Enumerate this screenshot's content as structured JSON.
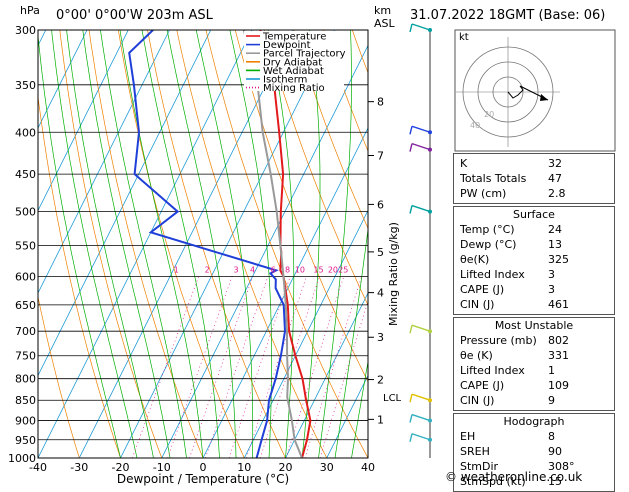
{
  "header": {
    "location": "0°00' 0°00'W 203m ASL",
    "datetime": "31.07.2022 18GMT (Base: 06)",
    "hpa_label": "hPa",
    "km_label": "km",
    "asl_label": "ASL",
    "footer": "© weatheronline.co.uk",
    "mixing_axis_label": "Mixing Ratio (g/kg)",
    "lcl_label": "LCL"
  },
  "chart_data": {
    "type": "line",
    "title": "",
    "xlabel": "Dewpoint / Temperature (°C)",
    "ylabel": "hPa",
    "xlim": [
      -40,
      40
    ],
    "ylim": [
      1000,
      300
    ],
    "x_ticks": [
      "-40",
      "-30",
      "-20",
      "-10",
      "0",
      "10",
      "20",
      "30",
      "40"
    ],
    "pressure_levels": [
      300,
      350,
      400,
      450,
      500,
      550,
      600,
      650,
      700,
      750,
      800,
      850,
      900,
      950,
      1000
    ],
    "km_ticks": [
      {
        "label": "8",
        "p": 367
      },
      {
        "label": "7",
        "p": 427
      },
      {
        "label": "6",
        "p": 490
      },
      {
        "label": "5",
        "p": 560
      },
      {
        "label": "4",
        "p": 628
      },
      {
        "label": "3",
        "p": 712
      },
      {
        "label": "2",
        "p": 802
      },
      {
        "label": "1",
        "p": 897
      }
    ],
    "lcl_p": 842,
    "mixing_ratio_labels": [
      {
        "label": "1",
        "x": -6.5
      },
      {
        "label": "2",
        "x": 1
      },
      {
        "label": "3",
        "x": 8
      },
      {
        "label": "4",
        "x": 12
      },
      {
        "label": "6",
        "x": 17
      },
      {
        "label": "8",
        "x": 20.5
      },
      {
        "label": "10",
        "x": 23.5
      },
      {
        "label": "15",
        "x": 28
      },
      {
        "label": "20",
        "x": 31.5
      },
      {
        "label": "25",
        "x": 34
      }
    ],
    "legend": [
      {
        "name": "Temperature",
        "color": "#e31a1c",
        "dash": "none"
      },
      {
        "name": "Dewpoint",
        "color": "#1f3fd8",
        "dash": "none"
      },
      {
        "name": "Parcel Trajectory",
        "color": "#999999",
        "dash": "none"
      },
      {
        "name": "Dry Adiabat",
        "color": "#f08000",
        "dash": "none"
      },
      {
        "name": "Wet Adiabat",
        "color": "#00b000",
        "dash": "none"
      },
      {
        "name": "Isotherm",
        "color": "#1a9ad6",
        "dash": "none"
      },
      {
        "name": "Mixing Ratio",
        "color": "#e0178c",
        "dash": "dot"
      }
    ],
    "series": [
      {
        "name": "Temperature",
        "color": "#e31a1c",
        "points": [
          [
            1000,
            24
          ],
          [
            950,
            23
          ],
          [
            900,
            21.5
          ],
          [
            850,
            18
          ],
          [
            800,
            14.5
          ],
          [
            750,
            10
          ],
          [
            700,
            5.5
          ],
          [
            650,
            2
          ],
          [
            600,
            -2.5
          ],
          [
            590,
            -4
          ],
          [
            560,
            -6
          ],
          [
            550,
            -7
          ],
          [
            500,
            -11
          ],
          [
            450,
            -15
          ],
          [
            400,
            -21
          ],
          [
            350,
            -28
          ],
          [
            300,
            -38
          ]
        ]
      },
      {
        "name": "Dewpoint",
        "color": "#1f3fd8",
        "points": [
          [
            1000,
            13
          ],
          [
            950,
            12
          ],
          [
            900,
            11
          ],
          [
            850,
            9
          ],
          [
            800,
            8
          ],
          [
            750,
            6.5
          ],
          [
            700,
            4.5
          ],
          [
            650,
            1
          ],
          [
            620,
            -3
          ],
          [
            605,
            -4
          ],
          [
            595,
            -6
          ],
          [
            590,
            -5
          ],
          [
            560,
            -22
          ],
          [
            530,
            -40
          ],
          [
            500,
            -36
          ],
          [
            450,
            -51
          ],
          [
            400,
            -55
          ],
          [
            350,
            -62
          ],
          [
            320,
            -67
          ],
          [
            300,
            -64
          ]
        ]
      },
      {
        "name": "Parcel Trajectory",
        "color": "#999999",
        "points": [
          [
            1000,
            24
          ],
          [
            950,
            20
          ],
          [
            900,
            17
          ],
          [
            842,
            13
          ],
          [
            800,
            11
          ],
          [
            750,
            8
          ],
          [
            700,
            5
          ],
          [
            650,
            1.5
          ],
          [
            600,
            -2.5
          ],
          [
            550,
            -7
          ],
          [
            500,
            -12
          ],
          [
            450,
            -18
          ],
          [
            400,
            -25
          ],
          [
            350,
            -32
          ],
          [
            300,
            -42
          ]
        ]
      }
    ]
  },
  "hodograph": {
    "label": "kt",
    "ring_labels": [
      "20",
      "40"
    ]
  },
  "indices": {
    "top": [
      {
        "label": "K",
        "value": "32"
      },
      {
        "label": "Totals Totals",
        "value": "47"
      },
      {
        "label": "PW (cm)",
        "value": "2.8"
      }
    ],
    "surface": {
      "title": "Surface",
      "rows": [
        {
          "label": "Temp (°C)",
          "value": "24"
        },
        {
          "label": "Dewp (°C)",
          "value": "13"
        },
        {
          "label": "θe(K)",
          "value": "325"
        },
        {
          "label": "Lifted Index",
          "value": "3"
        },
        {
          "label": "CAPE (J)",
          "value": "3"
        },
        {
          "label": "CIN (J)",
          "value": "461"
        }
      ]
    },
    "unstable": {
      "title": "Most Unstable",
      "rows": [
        {
          "label": "Pressure (mb)",
          "value": "802"
        },
        {
          "label": "θe (K)",
          "value": "331"
        },
        {
          "label": "Lifted Index",
          "value": "1"
        },
        {
          "label": "CAPE (J)",
          "value": "109"
        },
        {
          "label": "CIN (J)",
          "value": "9"
        }
      ]
    },
    "hodograph": {
      "title": "Hodograph",
      "rows": [
        {
          "label": "EH",
          "value": "8"
        },
        {
          "label": "SREH",
          "value": "90"
        },
        {
          "label": "StmDir",
          "value": "308°"
        },
        {
          "label": "StmSpd (kt)",
          "value": "15"
        }
      ]
    }
  }
}
